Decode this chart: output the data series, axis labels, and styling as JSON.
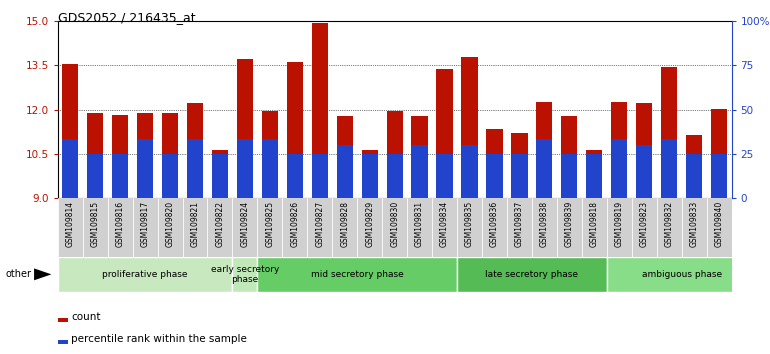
{
  "title": "GDS2052 / 216435_at",
  "samples": [
    "GSM109814",
    "GSM109815",
    "GSM109816",
    "GSM109817",
    "GSM109820",
    "GSM109821",
    "GSM109822",
    "GSM109824",
    "GSM109825",
    "GSM109826",
    "GSM109827",
    "GSM109828",
    "GSM109829",
    "GSM109830",
    "GSM109831",
    "GSM109834",
    "GSM109835",
    "GSM109836",
    "GSM109837",
    "GSM109838",
    "GSM109839",
    "GSM109818",
    "GSM109819",
    "GSM109823",
    "GSM109832",
    "GSM109833",
    "GSM109840"
  ],
  "count_values": [
    13.55,
    11.88,
    11.82,
    11.88,
    11.88,
    12.22,
    10.62,
    13.73,
    11.95,
    13.62,
    14.95,
    11.78,
    10.62,
    11.95,
    11.78,
    13.38,
    13.78,
    11.35,
    11.22,
    12.25,
    11.78,
    10.62,
    12.25,
    12.22,
    13.45,
    11.15,
    12.02
  ],
  "percentile_values": [
    2.0,
    1.5,
    1.5,
    2.0,
    1.5,
    2.0,
    1.5,
    2.0,
    2.0,
    1.5,
    1.5,
    1.8,
    1.5,
    1.5,
    1.8,
    1.5,
    1.8,
    1.5,
    1.5,
    2.0,
    1.5,
    1.5,
    2.0,
    1.8,
    2.0,
    1.5,
    1.5
  ],
  "phases": [
    {
      "label": "proliferative phase",
      "start": 0,
      "end": 7,
      "color": "#c8e8c0"
    },
    {
      "label": "early secretory\nphase",
      "start": 7,
      "end": 8,
      "color": "#c0e8b8"
    },
    {
      "label": "mid secretory phase",
      "start": 8,
      "end": 16,
      "color": "#66cc66"
    },
    {
      "label": "late secretory phase",
      "start": 16,
      "end": 22,
      "color": "#55bb55"
    },
    {
      "label": "ambiguous phase",
      "start": 22,
      "end": 28,
      "color": "#88dd88"
    }
  ],
  "ymin": 9.0,
  "ymax": 15.0,
  "yticks_left": [
    9.0,
    10.5,
    12.0,
    13.5,
    15.0
  ],
  "right_ytick_pcts": [
    0,
    25,
    50,
    75,
    100
  ],
  "bar_color_red": "#bb1100",
  "bar_color_blue": "#2244cc",
  "tick_bg_color": "#cccccc",
  "phase_border_color": "#228822"
}
